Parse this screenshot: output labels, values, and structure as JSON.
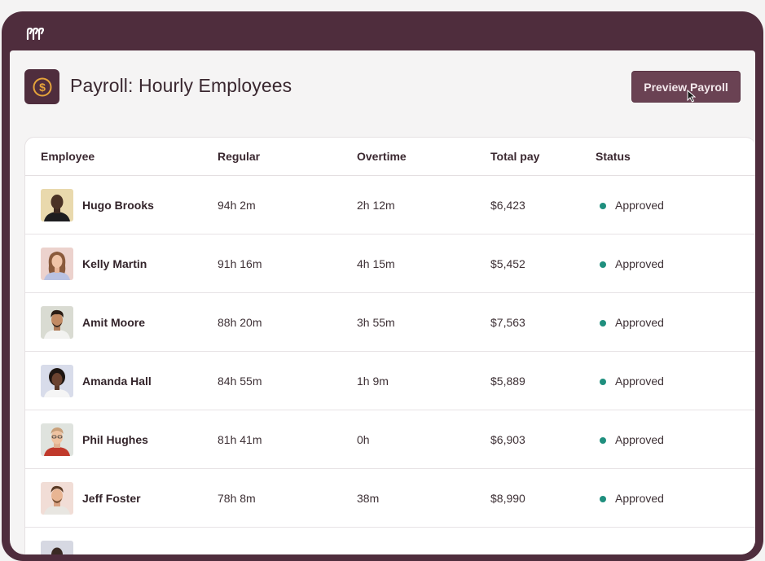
{
  "page": {
    "title": "Payroll: Hourly Employees",
    "preview_button": "Preview Payroll"
  },
  "colors": {
    "frame": "#4f2d3d",
    "button": "#6a4253",
    "status_approved": "#1f8f7e"
  },
  "icons": {
    "logo": "brand-logo-icon",
    "app": "dollar-coin-icon",
    "cursor": "mouse-pointer-icon"
  },
  "table": {
    "columns": [
      "Employee",
      "Regular",
      "Overtime",
      "Total pay",
      "Status"
    ],
    "rows": [
      {
        "name": "Hugo Brooks",
        "regular": "94h 2m",
        "overtime": "2h 12m",
        "total": "$6,423",
        "status": "Approved"
      },
      {
        "name": "Kelly Martin",
        "regular": "91h 16m",
        "overtime": "4h 15m",
        "total": "$5,452",
        "status": "Approved"
      },
      {
        "name": "Amit Moore",
        "regular": "88h 20m",
        "overtime": "3h 55m",
        "total": "$7,563",
        "status": "Approved"
      },
      {
        "name": "Amanda Hall",
        "regular": "84h 55m",
        "overtime": "1h 9m",
        "total": "$5,889",
        "status": "Approved"
      },
      {
        "name": "Phil Hughes",
        "regular": "81h 41m",
        "overtime": "0h",
        "total": "$6,903",
        "status": "Approved"
      },
      {
        "name": "Jeff Foster",
        "regular": "78h 8m",
        "overtime": "38m",
        "total": "$8,990",
        "status": "Approved"
      }
    ]
  }
}
